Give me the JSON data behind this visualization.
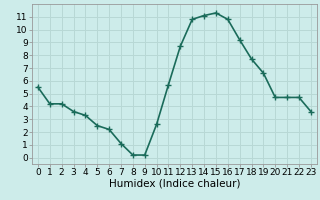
{
  "x": [
    0,
    1,
    2,
    3,
    4,
    5,
    6,
    7,
    8,
    9,
    10,
    11,
    12,
    13,
    14,
    15,
    16,
    17,
    18,
    19,
    20,
    21,
    22,
    23
  ],
  "y": [
    5.5,
    4.2,
    4.2,
    3.6,
    3.3,
    2.5,
    2.2,
    1.1,
    0.2,
    0.2,
    2.6,
    5.7,
    8.7,
    10.8,
    11.1,
    11.3,
    10.8,
    9.2,
    7.7,
    6.6,
    4.7,
    4.7,
    4.7,
    3.6
  ],
  "line_color": "#1a6b5a",
  "marker": "+",
  "marker_size": 4,
  "line_width": 1.2,
  "bg_color": "#cdecea",
  "grid_color": "#b8d8d5",
  "xlabel": "Humidex (Indice chaleur)",
  "xlim": [
    -0.5,
    23.5
  ],
  "ylim": [
    -0.5,
    12.0
  ],
  "xticks": [
    0,
    1,
    2,
    3,
    4,
    5,
    6,
    7,
    8,
    9,
    10,
    11,
    12,
    13,
    14,
    15,
    16,
    17,
    18,
    19,
    20,
    21,
    22,
    23
  ],
  "yticks": [
    0,
    1,
    2,
    3,
    4,
    5,
    6,
    7,
    8,
    9,
    10,
    11
  ],
  "xlabel_fontsize": 7.5,
  "tick_fontsize": 6.5
}
